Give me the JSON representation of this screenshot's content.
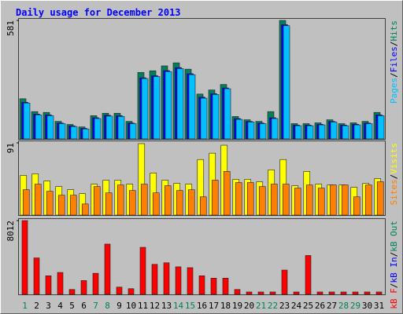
{
  "title": "Daily usage for December 2013",
  "legend_separator": "/",
  "weekend_color": "#00805c",
  "weekends": [
    "1",
    "7",
    "8",
    "14",
    "15",
    "21",
    "22",
    "28",
    "29"
  ],
  "chart_data": [
    {
      "type": "bar",
      "categories": [
        "1",
        "2",
        "3",
        "4",
        "5",
        "6",
        "7",
        "8",
        "9",
        "10",
        "11",
        "12",
        "13",
        "14",
        "15",
        "16",
        "17",
        "18",
        "19",
        "20",
        "21",
        "22",
        "23",
        "24",
        "25",
        "26",
        "27",
        "28",
        "29",
        "30",
        "31"
      ],
      "ylim": [
        0,
        581
      ],
      "yticks": [
        581
      ],
      "series": [
        {
          "name": "Hits",
          "color": "#00805c",
          "values": [
            197,
            134,
            130,
            86,
            71,
            59,
            114,
            126,
            126,
            86,
            326,
            334,
            358,
            373,
            342,
            220,
            240,
            267,
            110,
            94,
            86,
            134,
            581,
            75,
            75,
            79,
            94,
            75,
            79,
            86,
            130
          ]
        },
        {
          "name": "Files",
          "color": "#0000ff",
          "values": [
            180,
            122,
            118,
            78,
            64,
            52,
            104,
            116,
            114,
            78,
            300,
            310,
            335,
            350,
            320,
            205,
            222,
            250,
            100,
            86,
            78,
            104,
            560,
            68,
            68,
            72,
            86,
            68,
            72,
            78,
            118
          ]
        },
        {
          "name": "Pages",
          "color": "#00c0ff",
          "values": [
            176,
            118,
            114,
            75,
            61,
            49,
            100,
            112,
            110,
            75,
            296,
            306,
            330,
            345,
            315,
            200,
            218,
            246,
            96,
            83,
            75,
            100,
            555,
            65,
            65,
            69,
            83,
            65,
            69,
            75,
            114
          ]
        }
      ],
      "legend_order": [
        "Pages",
        "Files",
        "Hits"
      ]
    },
    {
      "type": "bar",
      "categories": [
        "1",
        "2",
        "3",
        "4",
        "5",
        "6",
        "7",
        "8",
        "9",
        "10",
        "11",
        "12",
        "13",
        "14",
        "15",
        "16",
        "17",
        "18",
        "19",
        "20",
        "21",
        "22",
        "23",
        "24",
        "25",
        "26",
        "27",
        "28",
        "29",
        "30",
        "31"
      ],
      "ylim": [
        0,
        91
      ],
      "yticks": [
        91
      ],
      "series": [
        {
          "name": "Visits",
          "color": "#ffff00",
          "values": [
            50,
            52,
            43,
            36,
            32,
            27,
            39,
            44,
            44,
            39,
            90,
            53,
            44,
            40,
            39,
            70,
            78,
            88,
            45,
            45,
            42,
            57,
            70,
            37,
            55,
            39,
            38,
            38,
            35,
            40,
            46
          ]
        },
        {
          "name": "Sites",
          "color": "#ff8000",
          "values": [
            32,
            39,
            30,
            25,
            25,
            14,
            36,
            28,
            38,
            31,
            39,
            28,
            37,
            31,
            32,
            23,
            44,
            55,
            41,
            41,
            36,
            39,
            39,
            34,
            38,
            34,
            38,
            38,
            23,
            38,
            42
          ]
        }
      ],
      "legend_order": [
        "Sites",
        "Visits"
      ]
    },
    {
      "type": "bar",
      "categories": [
        "1",
        "2",
        "3",
        "4",
        "5",
        "6",
        "7",
        "8",
        "9",
        "10",
        "11",
        "12",
        "13",
        "14",
        "15",
        "16",
        "17",
        "18",
        "19",
        "20",
        "21",
        "22",
        "23",
        "24",
        "25",
        "26",
        "27",
        "28",
        "29",
        "30",
        "31"
      ],
      "ylim": [
        0,
        8012
      ],
      "yticks": [
        8012
      ],
      "series": [
        {
          "name": "kB F",
          "color": "#ff0000",
          "values": [
            8012,
            3960,
            2020,
            2380,
            530,
            1500,
            2290,
            5460,
            790,
            620,
            5110,
            3260,
            3430,
            2990,
            2900,
            2020,
            1760,
            1760,
            530,
            260,
            260,
            260,
            2640,
            260,
            4220,
            260,
            260,
            260,
            260,
            260,
            260
          ]
        }
      ],
      "extra_legend": [
        {
          "name": "kB In",
          "color": "#0000ff"
        },
        {
          "name": "kB Out",
          "color": "#00805c"
        }
      ]
    }
  ]
}
